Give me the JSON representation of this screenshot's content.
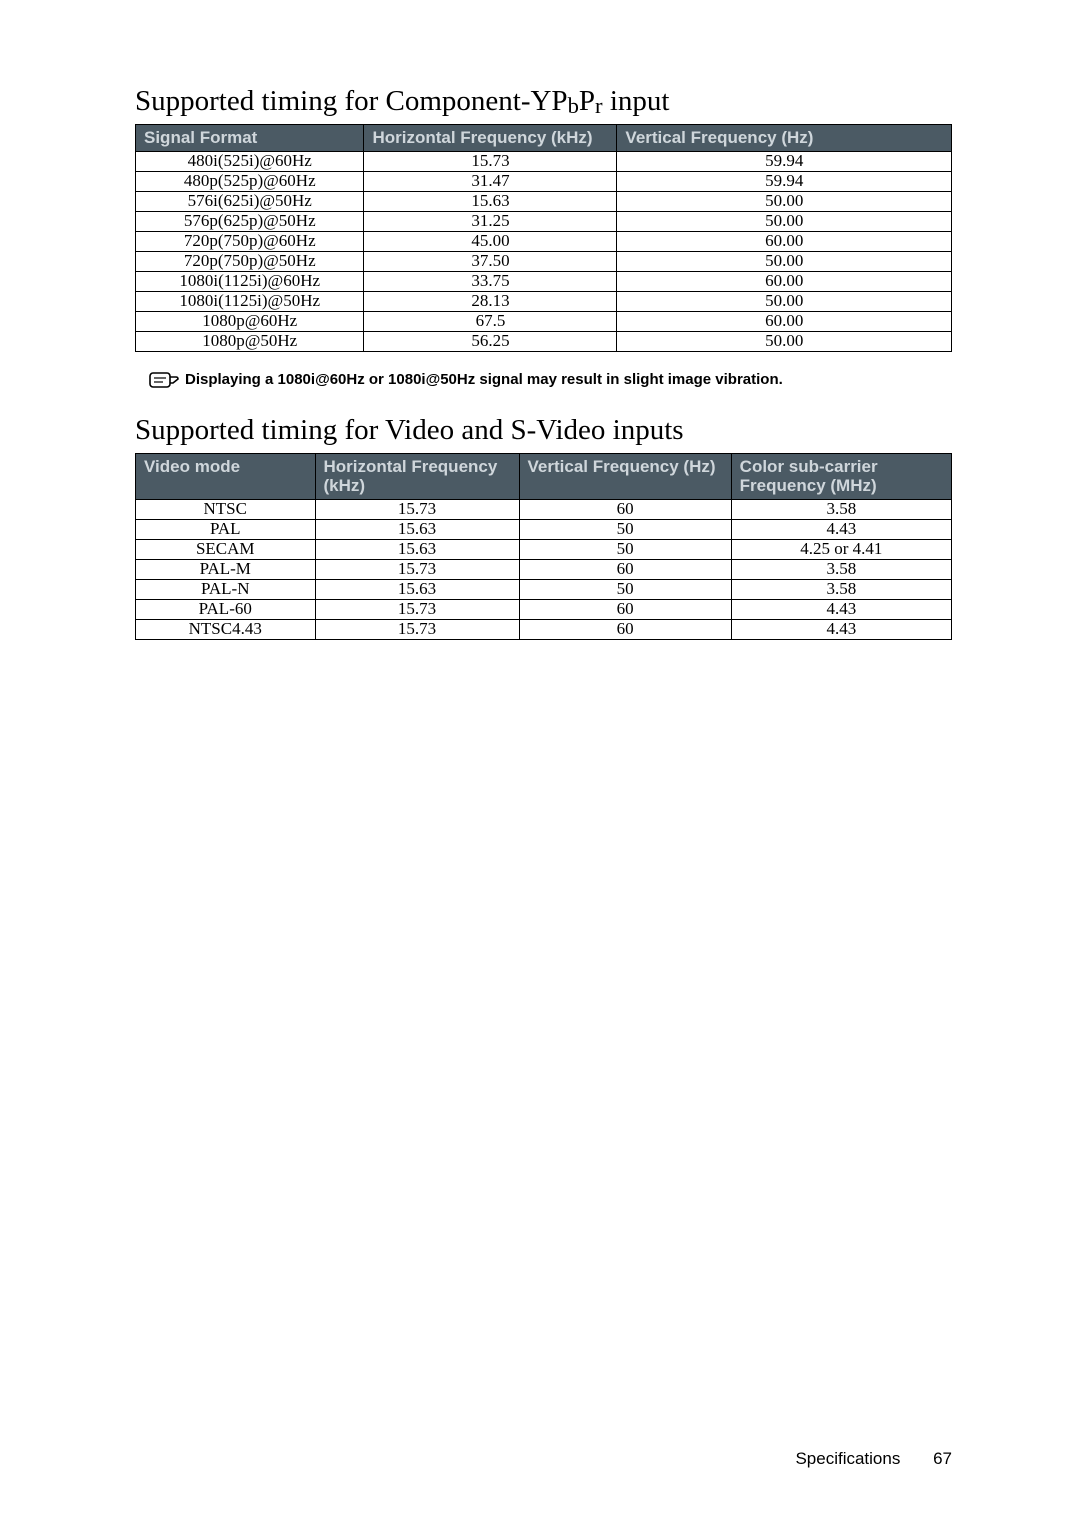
{
  "section1": {
    "title_parts": [
      "Supported timing for Component-YP",
      "b",
      "P",
      "r",
      " input"
    ],
    "headers": [
      "Signal Format",
      "Horizontal Frequency (kHz)",
      "Vertical Frequency (Hz)"
    ],
    "col_widths": [
      "28%",
      "31%",
      "41%"
    ],
    "rows": [
      [
        "480i(525i)@60Hz",
        "15.73",
        "59.94"
      ],
      [
        "480p(525p)@60Hz",
        "31.47",
        "59.94"
      ],
      [
        "576i(625i)@50Hz",
        "15.63",
        "50.00"
      ],
      [
        "576p(625p)@50Hz",
        "31.25",
        "50.00"
      ],
      [
        "720p(750p)@60Hz",
        "45.00",
        "60.00"
      ],
      [
        "720p(750p)@50Hz",
        "37.50",
        "50.00"
      ],
      [
        "1080i(1125i)@60Hz",
        "33.75",
        "60.00"
      ],
      [
        "1080i(1125i)@50Hz",
        "28.13",
        "50.00"
      ],
      [
        "1080p@60Hz",
        "67.5",
        "60.00"
      ],
      [
        "1080p@50Hz",
        "56.25",
        "50.00"
      ]
    ]
  },
  "note": "Displaying a 1080i@60Hz or 1080i@50Hz signal may result in slight image vibration.",
  "section2": {
    "title": "Supported timing for Video and S-Video inputs",
    "headers": [
      "Video mode",
      "Horizontal Frequency (kHz)",
      "Vertical Frequency (Hz)",
      "Color sub-carrier Frequency (MHz)"
    ],
    "col_widths": [
      "22%",
      "25%",
      "26%",
      "27%"
    ],
    "rows": [
      [
        "NTSC",
        "15.73",
        "60",
        "3.58"
      ],
      [
        "PAL",
        "15.63",
        "50",
        "4.43"
      ],
      [
        "SECAM",
        "15.63",
        "50",
        "4.25 or 4.41"
      ],
      [
        "PAL-M",
        "15.73",
        "60",
        "3.58"
      ],
      [
        "PAL-N",
        "15.63",
        "50",
        "3.58"
      ],
      [
        "PAL-60",
        "15.73",
        "60",
        "4.43"
      ],
      [
        "NTSC4.43",
        "15.73",
        "60",
        "4.43"
      ]
    ]
  },
  "footer": {
    "label": "Specifications",
    "page": "67"
  }
}
